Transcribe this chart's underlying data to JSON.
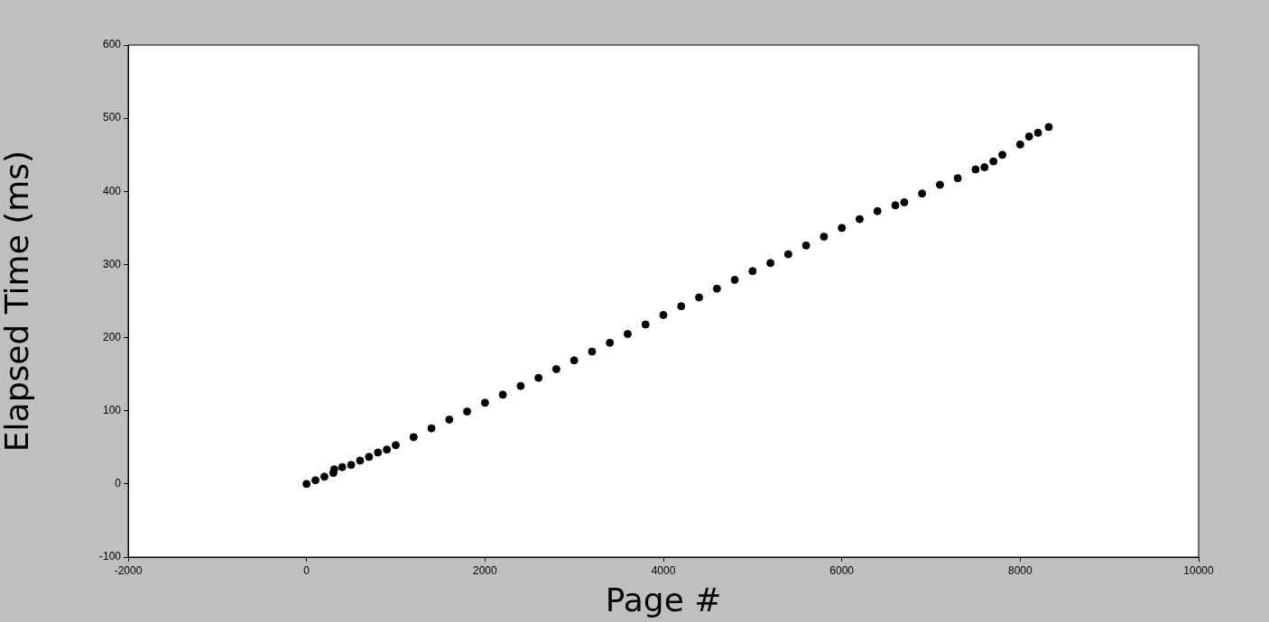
{
  "chart_data": {
    "type": "scatter",
    "xlabel": "Page #",
    "ylabel": "Elapsed Time (ms)",
    "xlim": [
      -2000,
      10000
    ],
    "xticks": [
      -2000,
      0,
      2000,
      4000,
      6000,
      8000,
      10000
    ],
    "ylim": [
      -100,
      600
    ],
    "yticks": [
      -100,
      0,
      100,
      200,
      300,
      400,
      500,
      600
    ],
    "grid": false,
    "legend": false,
    "marker": "circle",
    "series": [
      {
        "color": "#000000",
        "x": [
          0,
          100,
          200,
          300,
          310,
          400,
          500,
          600,
          700,
          800,
          900,
          1000,
          1200,
          1400,
          1600,
          1800,
          2000,
          2200,
          2400,
          2600,
          2800,
          3000,
          3200,
          3400,
          3600,
          3800,
          4000,
          4200,
          4400,
          4600,
          4800,
          5000,
          5200,
          5400,
          5600,
          5800,
          6000,
          6200,
          6400,
          6600,
          6700,
          6900,
          7100,
          7300,
          7500,
          7600,
          7700,
          7800,
          8000,
          8100,
          8200,
          8320
        ],
        "values": [
          0,
          5,
          10,
          15,
          20,
          23,
          26,
          32,
          37,
          43,
          47,
          53,
          64,
          76,
          88,
          99,
          111,
          122,
          134,
          145,
          157,
          169,
          181,
          193,
          205,
          218,
          231,
          243,
          255,
          267,
          279,
          291,
          302,
          314,
          326,
          338,
          350,
          362,
          373,
          381,
          385,
          397,
          409,
          418,
          430,
          433,
          441,
          450,
          464,
          475,
          480,
          488
        ]
      }
    ]
  }
}
